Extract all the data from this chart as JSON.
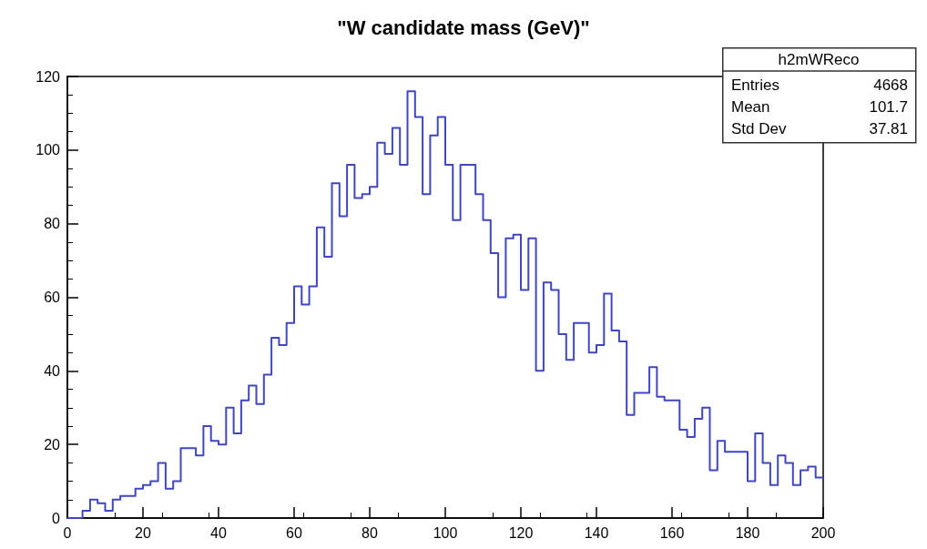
{
  "chart_data": {
    "type": "histogram",
    "title": "\"W candidate mass (GeV)\"",
    "bins": [
      0,
      2,
      4,
      6,
      8,
      10,
      12,
      14,
      16,
      18,
      20,
      22,
      24,
      26,
      28,
      30,
      32,
      34,
      36,
      38,
      40,
      42,
      44,
      46,
      48,
      50,
      52,
      54,
      56,
      58,
      60,
      62,
      64,
      66,
      68,
      70,
      72,
      74,
      76,
      78,
      80,
      82,
      84,
      86,
      88,
      90,
      92,
      94,
      96,
      98,
      100,
      102,
      104,
      106,
      108,
      110,
      112,
      114,
      116,
      118,
      120,
      122,
      124,
      126,
      128,
      130,
      132,
      134,
      136,
      138,
      140,
      142,
      144,
      146,
      148,
      150,
      152,
      154,
      156,
      158,
      160,
      162,
      164,
      166,
      168,
      170,
      172,
      174,
      176,
      178,
      180,
      182,
      184,
      186,
      188,
      190,
      192,
      194,
      196,
      198,
      200
    ],
    "values": [
      0,
      0,
      2,
      5,
      4,
      2,
      5,
      6,
      6,
      8,
      9,
      10,
      15,
      8,
      10,
      19,
      19,
      17,
      25,
      21,
      20,
      30,
      23,
      32,
      36,
      31,
      39,
      49,
      47,
      53,
      63,
      58,
      63,
      79,
      71,
      91,
      82,
      96,
      87,
      88,
      90,
      102,
      99,
      106,
      96,
      116,
      109,
      88,
      104,
      109,
      96,
      81,
      96,
      96,
      88,
      81,
      72,
      60,
      76,
      77,
      62,
      76,
      40,
      64,
      62,
      50,
      43,
      53,
      53,
      45,
      47,
      61,
      51,
      48,
      28,
      34,
      34,
      41,
      33,
      32,
      32,
      24,
      22,
      27,
      30,
      13,
      21,
      18,
      18,
      18,
      10,
      23,
      15,
      9,
      17,
      15,
      9,
      13,
      14,
      11
    ],
    "color": "#3f46c0",
    "xlim": [
      0,
      200
    ],
    "xticks": [
      0,
      20,
      40,
      60,
      80,
      100,
      120,
      140,
      160,
      180,
      200
    ],
    "ylim": [
      0,
      120
    ],
    "yticks": [
      0,
      20,
      40,
      60,
      80,
      100,
      120
    ],
    "grid": false,
    "annotations": [
      "h2mWReco",
      "Entries",
      "4668",
      "Mean",
      "101.7",
      "Std Dev",
      "37.81"
    ]
  }
}
